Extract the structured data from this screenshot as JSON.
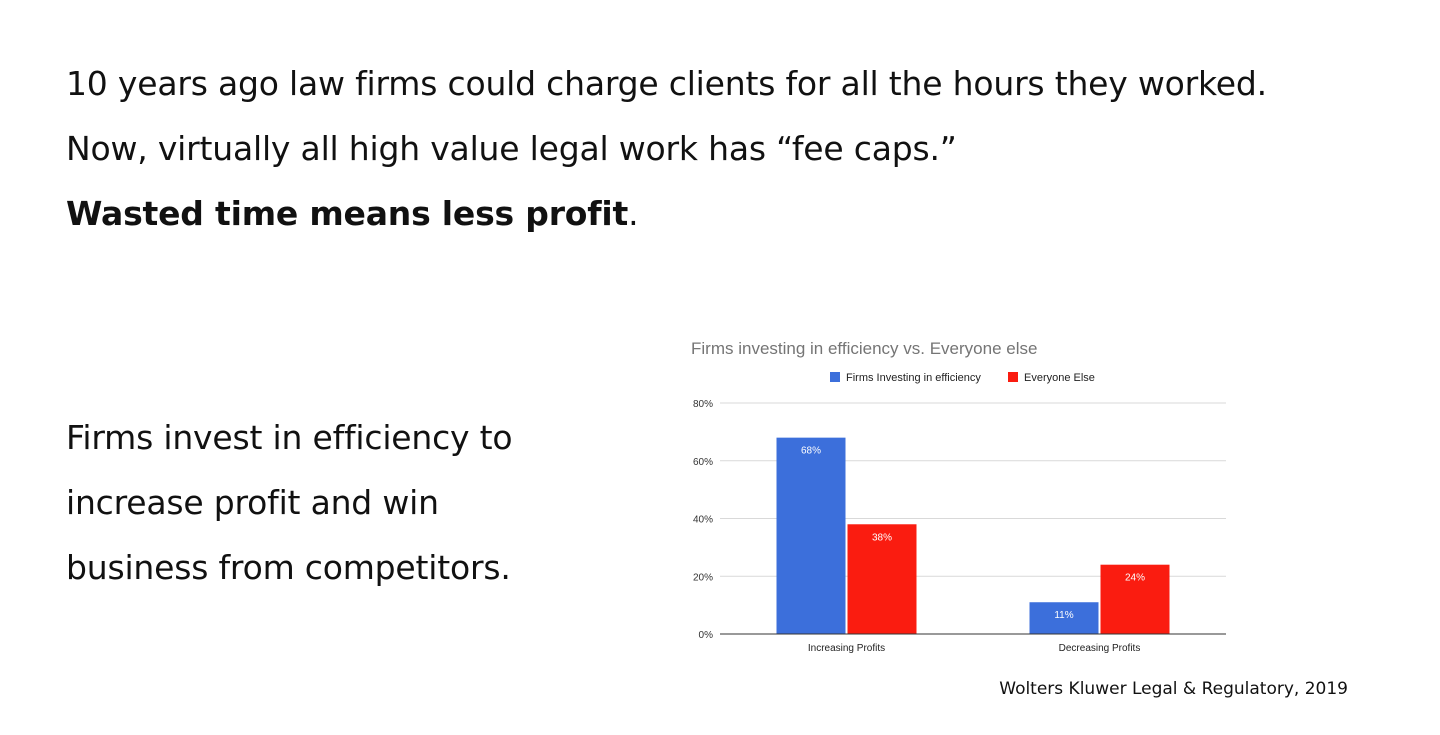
{
  "headline": {
    "line1": "10 years ago law firms could charge clients for all the hours they worked.",
    "line2": "Now, virtually all high value legal work has “fee caps.”",
    "line3_bold": "Wasted time means less profit",
    "line3_tail": "."
  },
  "body": {
    "line1": "Firms invest in efficiency to",
    "line2": "increase profit and win",
    "line3": "business from competitors."
  },
  "source": "Wolters Kluwer Legal & Regulatory, 2019",
  "chart_data": {
    "type": "bar",
    "title": "Firms investing in efficiency vs. Everyone else",
    "categories": [
      "Increasing Profits",
      "Decreasing Profits"
    ],
    "series": [
      {
        "name": "Firms Investing in efficiency",
        "values": [
          68,
          11
        ],
        "labels": [
          "68%",
          "11%"
        ],
        "color": "#3c6fdb"
      },
      {
        "name": "Everyone Else",
        "values": [
          38,
          24
        ],
        "labels": [
          "38%",
          "24%"
        ],
        "color": "#fa1c10"
      }
    ],
    "ylim": [
      0,
      80
    ],
    "yticks": [
      0,
      20,
      40,
      60,
      80
    ],
    "ytick_labels": [
      "0%",
      "20%",
      "40%",
      "60%",
      "80%"
    ],
    "xlabel": "",
    "ylabel": "",
    "grid": true,
    "legend_position": "top-center"
  }
}
